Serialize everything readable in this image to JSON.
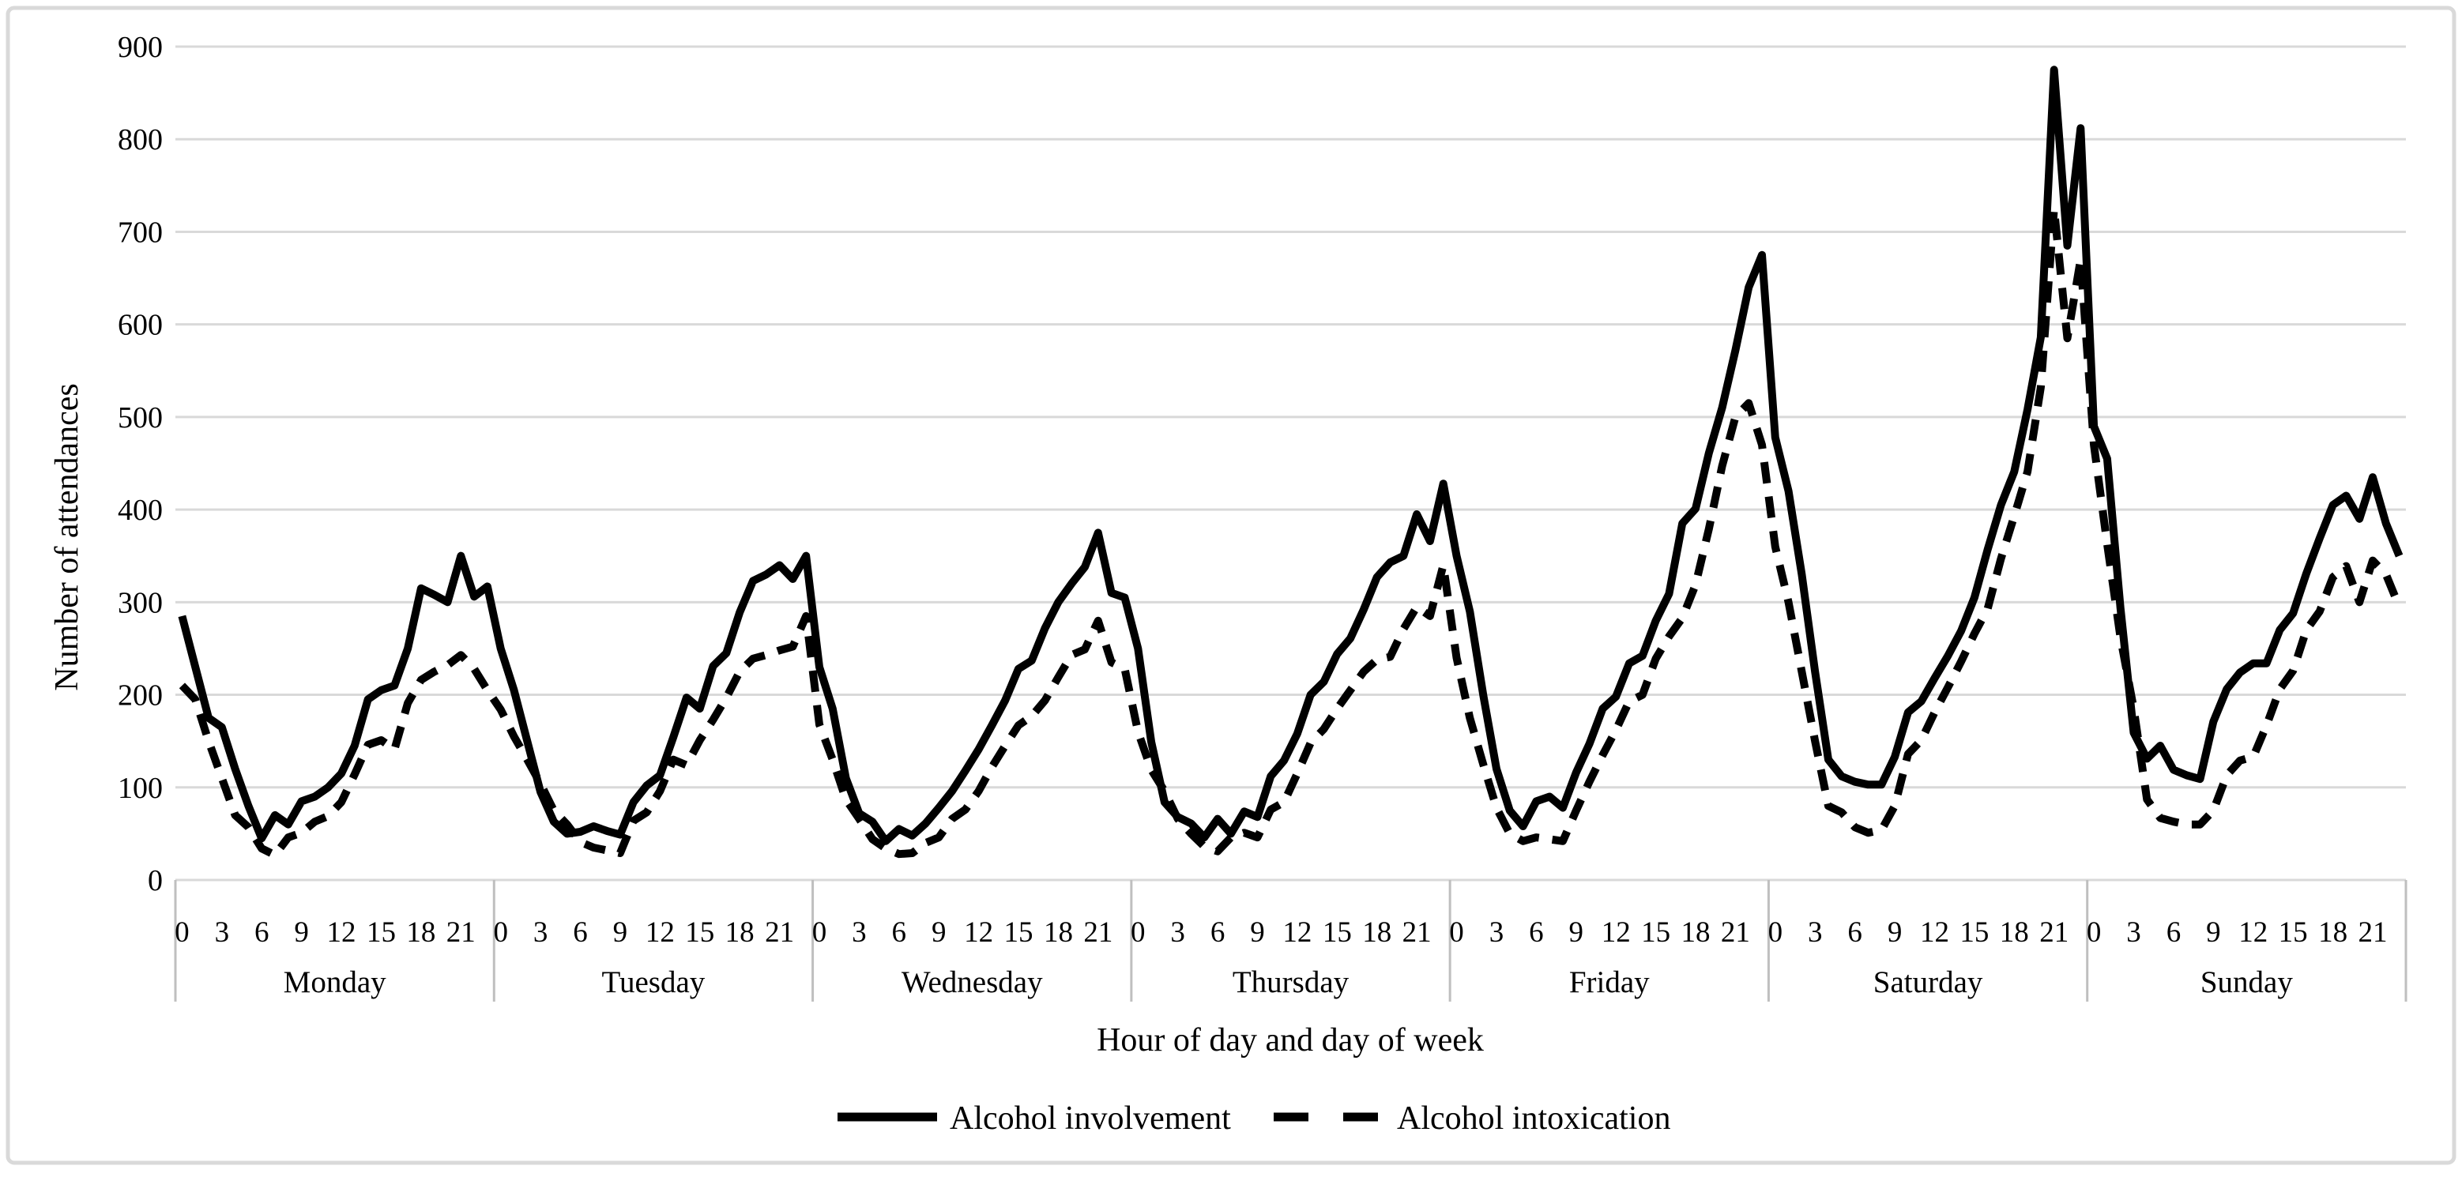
{
  "figure": {
    "background": "#ffffff",
    "border_color": "#d9d9d9",
    "line_color": "#000000",
    "gridline_color": "#d9d9d9",
    "separator_color": "#bfbfbf"
  },
  "chart_data": {
    "type": "line",
    "title": "",
    "xlabel": "Hour of day and day of week",
    "ylabel": "Number of attendances",
    "ylim": [
      0,
      900
    ],
    "y_ticks": [
      0,
      100,
      200,
      300,
      400,
      500,
      600,
      700,
      800,
      900
    ],
    "grid": "horizontal",
    "legend_position": "bottom-center",
    "days": [
      "Monday",
      "Tuesday",
      "Wednesday",
      "Thursday",
      "Friday",
      "Saturday",
      "Sunday"
    ],
    "hour_tick_labels": [
      0,
      3,
      6,
      9,
      12,
      15,
      18,
      21
    ],
    "hours_per_day": 24,
    "series": [
      {
        "name": "Alcohol involvement",
        "style": "solid",
        "color": "#000000",
        "values": [
          285,
          230,
          175,
          165,
          120,
          80,
          45,
          70,
          60,
          85,
          90,
          100,
          115,
          145,
          195,
          205,
          210,
          250,
          315,
          308,
          300,
          350,
          306,
          317,
          250,
          205,
          150,
          95,
          63,
          50,
          52,
          58,
          53,
          49,
          84,
          102,
          113,
          154,
          197,
          185,
          231,
          245,
          289,
          323,
          330,
          340,
          325,
          350,
          230,
          185,
          110,
          72,
          63,
          42,
          55,
          48,
          61,
          78,
          96,
          118,
          141,
          167,
          194,
          228,
          237,
          272,
          300,
          320,
          338,
          375,
          310,
          305,
          250,
          149,
          84,
          68,
          61,
          46,
          66,
          50,
          74,
          68,
          112,
          129,
          158,
          200,
          214,
          244,
          261,
          292,
          327,
          343,
          350,
          395,
          366,
          428,
          350,
          290,
          200,
          120,
          75,
          58,
          85,
          90,
          78,
          116,
          147,
          185,
          198,
          234,
          242,
          280,
          309,
          385,
          401,
          461,
          510,
          572,
          640,
          675,
          478,
          420,
          330,
          225,
          130,
          112,
          106,
          103,
          103,
          133,
          181,
          193,
          218,
          242,
          269,
          305,
          357,
          405,
          441,
          508,
          586,
          875,
          685,
          812,
          490,
          455,
          294,
          159,
          131,
          145,
          119,
          113,
          109,
          171,
          206,
          224,
          234,
          234,
          270,
          288,
          331,
          369,
          405,
          415,
          390,
          435,
          385,
          350
        ]
      },
      {
        "name": "Alcohol intoxication",
        "style": "dashed",
        "color": "#000000",
        "values": [
          210,
          195,
          150,
          110,
          70,
          57,
          34,
          27,
          46,
          51,
          63,
          69,
          84,
          114,
          146,
          151,
          141,
          191,
          216,
          225,
          232,
          243,
          228,
          205,
          184,
          155,
          130,
          104,
          75,
          60,
          41,
          35,
          32,
          29,
          64,
          73,
          96,
          130,
          124,
          151,
          173,
          197,
          225,
          239,
          243,
          248,
          252,
          285,
          168,
          130,
          87,
          66,
          44,
          34,
          28,
          29,
          40,
          46,
          66,
          76,
          96,
          122,
          145,
          167,
          177,
          194,
          219,
          243,
          249,
          280,
          235,
          228,
          160,
          119,
          96,
          66,
          50,
          36,
          31,
          46,
          51,
          46,
          76,
          84,
          115,
          148,
          163,
          185,
          205,
          225,
          238,
          241,
          271,
          295,
          285,
          340,
          240,
          175,
          125,
          78,
          50,
          42,
          46,
          44,
          42,
          75,
          106,
          135,
          162,
          193,
          200,
          239,
          263,
          283,
          319,
          379,
          447,
          500,
          515,
          470,
          360,
          300,
          225,
          150,
          80,
          73,
          57,
          51,
          54,
          80,
          136,
          151,
          181,
          208,
          236,
          266,
          293,
          347,
          393,
          441,
          532,
          725,
          585,
          670,
          470,
          363,
          262,
          185,
          87,
          67,
          63,
          60,
          60,
          75,
          113,
          129,
          133,
          167,
          206,
          226,
          270,
          290,
          327,
          339,
          300,
          345,
          330,
          295
        ]
      }
    ]
  }
}
